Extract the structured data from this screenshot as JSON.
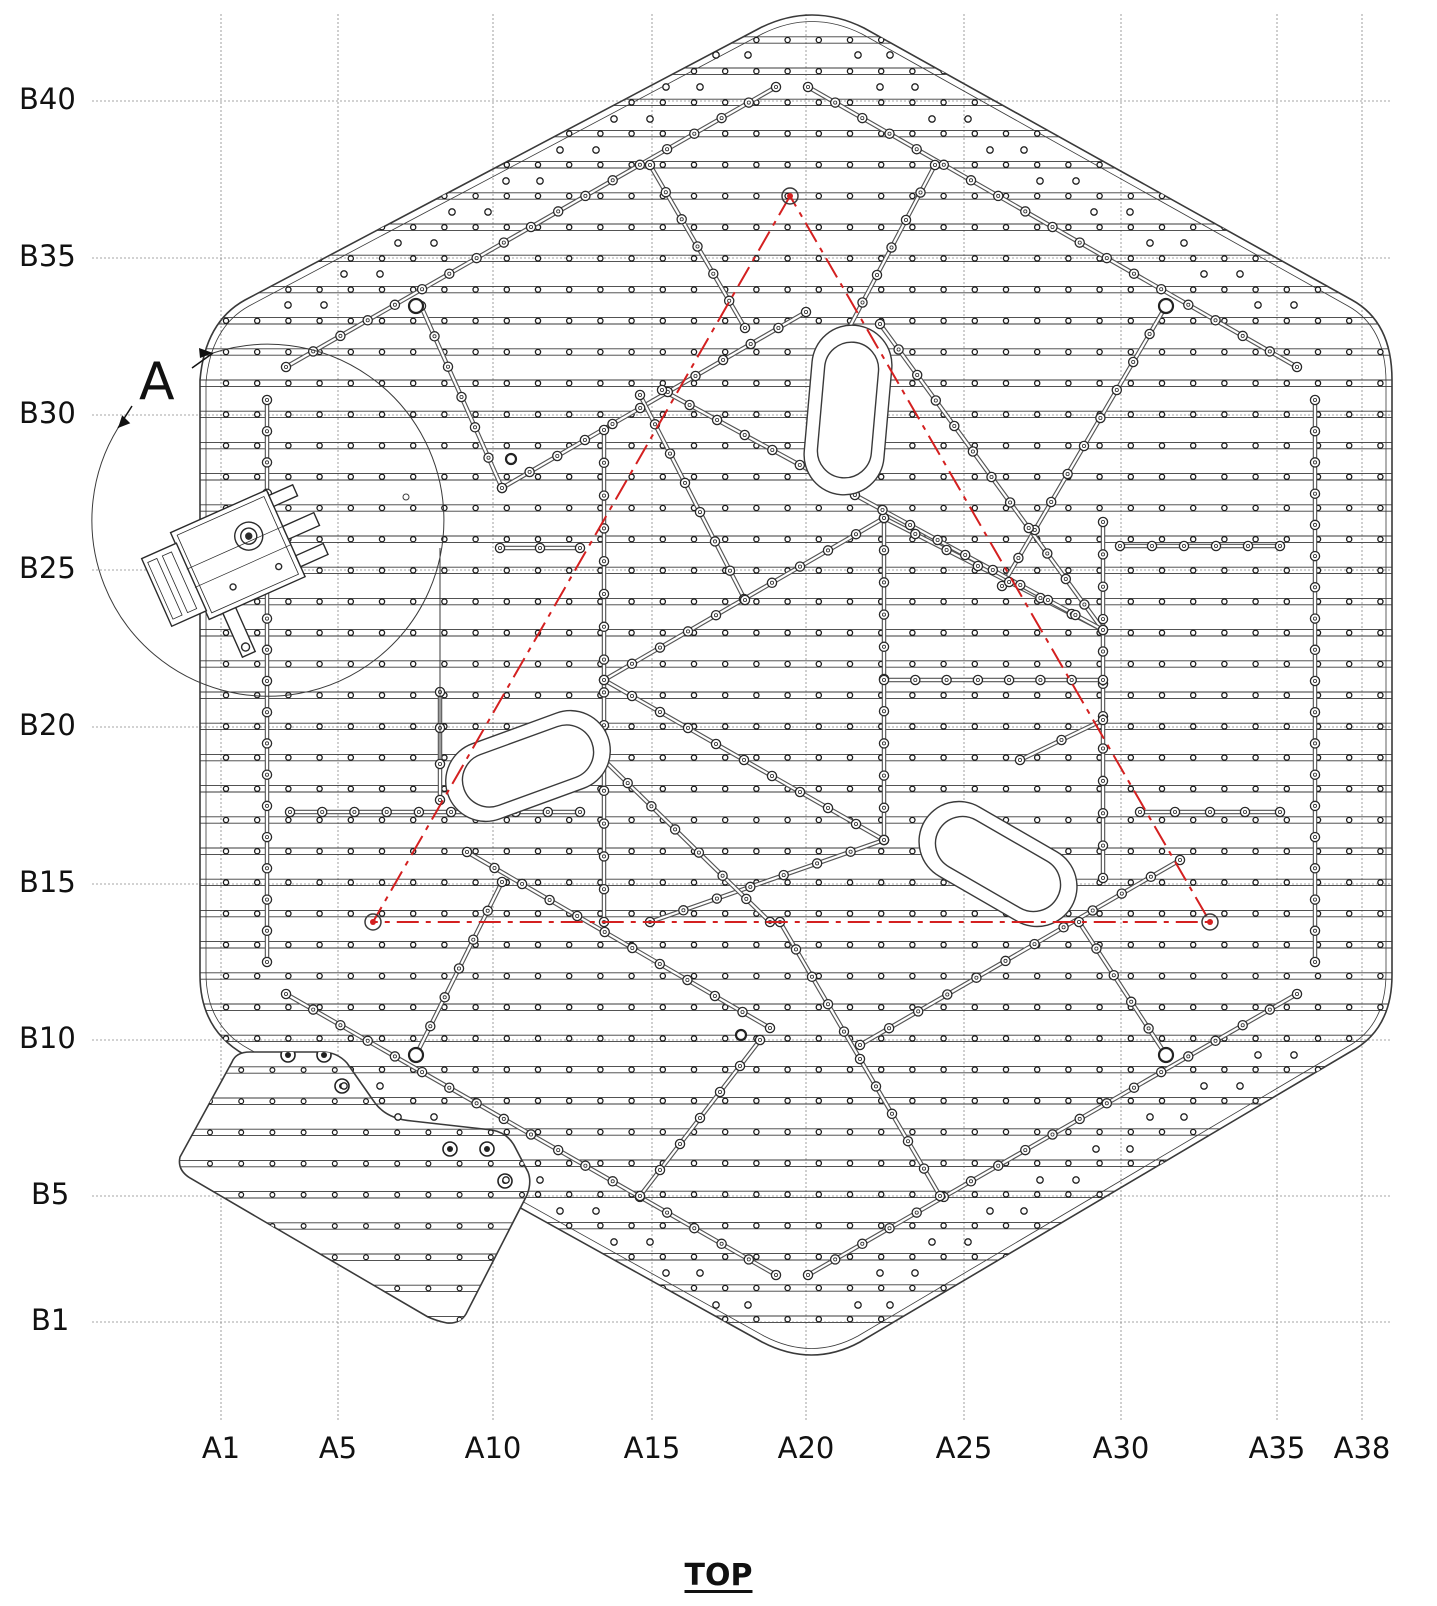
{
  "view_title": "TOP",
  "detail_callout": "A",
  "row_labels": [
    "B40",
    "B35",
    "B30",
    "B25",
    "B20",
    "B15",
    "B10",
    "B5",
    "B1"
  ],
  "column_labels": [
    "A1",
    "A5",
    "A10",
    "A15",
    "A20",
    "A25",
    "A30",
    "A35",
    "A38"
  ],
  "colors": {
    "outline": "#3a3a3a",
    "grid_lines": "#888888",
    "triangle_highlight": "#d42020"
  },
  "icons": [
    "detail-view-arrow-icon",
    "mounting-hole-icon",
    "access-port-icon",
    "actuator-module-icon"
  ]
}
